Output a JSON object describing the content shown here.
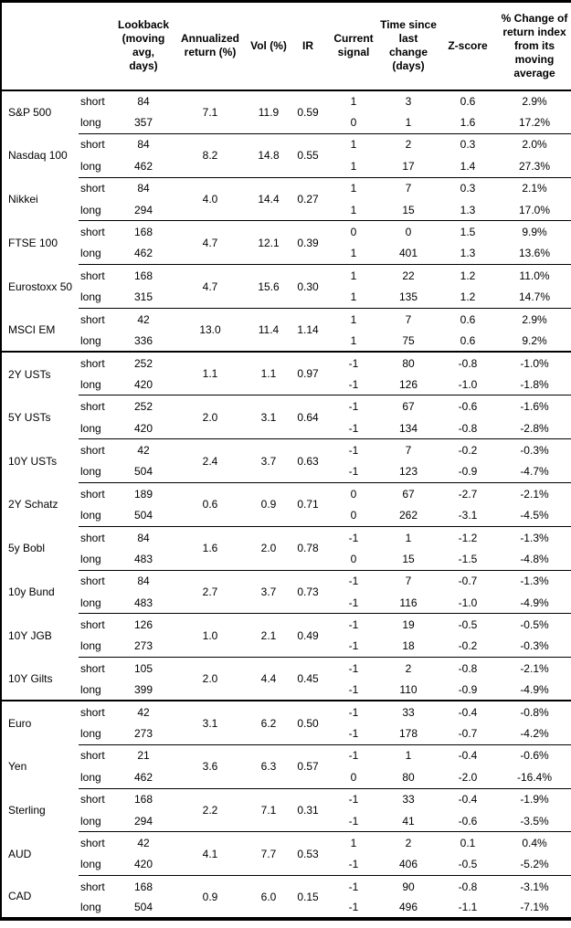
{
  "chart_data": {
    "type": "table",
    "columns": [
      "",
      "",
      "Lookback\n(moving\navg, days)",
      "Annualized\nreturn (%)",
      "Vol (%)",
      "IR",
      "Current\nsignal",
      "Time since\nlast change\n(days)",
      "Z-score",
      "% Change of\nreturn index\nfrom its\nmoving\naverage"
    ],
    "sections": [
      {
        "assets": [
          {
            "name": "S&P 500",
            "annualized_return": "7.1",
            "vol": "11.9",
            "ir": "0.59",
            "rows": [
              {
                "side": "short",
                "lookback": "84",
                "signal": "1",
                "time_since": "3",
                "z_score": "0.6",
                "pct_change": "2.9%"
              },
              {
                "side": "long",
                "lookback": "357",
                "signal": "0",
                "time_since": "1",
                "z_score": "1.6",
                "pct_change": "17.2%"
              }
            ]
          },
          {
            "name": "Nasdaq 100",
            "annualized_return": "8.2",
            "vol": "14.8",
            "ir": "0.55",
            "rows": [
              {
                "side": "short",
                "lookback": "84",
                "signal": "1",
                "time_since": "2",
                "z_score": "0.3",
                "pct_change": "2.0%"
              },
              {
                "side": "long",
                "lookback": "462",
                "signal": "1",
                "time_since": "17",
                "z_score": "1.4",
                "pct_change": "27.3%"
              }
            ]
          },
          {
            "name": "Nikkei",
            "annualized_return": "4.0",
            "vol": "14.4",
            "ir": "0.27",
            "rows": [
              {
                "side": "short",
                "lookback": "84",
                "signal": "1",
                "time_since": "7",
                "z_score": "0.3",
                "pct_change": "2.1%"
              },
              {
                "side": "long",
                "lookback": "294",
                "signal": "1",
                "time_since": "15",
                "z_score": "1.3",
                "pct_change": "17.0%"
              }
            ]
          },
          {
            "name": "FTSE 100",
            "annualized_return": "4.7",
            "vol": "12.1",
            "ir": "0.39",
            "rows": [
              {
                "side": "short",
                "lookback": "168",
                "signal": "0",
                "time_since": "0",
                "z_score": "1.5",
                "pct_change": "9.9%"
              },
              {
                "side": "long",
                "lookback": "462",
                "signal": "1",
                "time_since": "401",
                "z_score": "1.3",
                "pct_change": "13.6%"
              }
            ]
          },
          {
            "name": "Eurostoxx 50",
            "annualized_return": "4.7",
            "vol": "15.6",
            "ir": "0.30",
            "rows": [
              {
                "side": "short",
                "lookback": "168",
                "signal": "1",
                "time_since": "22",
                "z_score": "1.2",
                "pct_change": "11.0%"
              },
              {
                "side": "long",
                "lookback": "315",
                "signal": "1",
                "time_since": "135",
                "z_score": "1.2",
                "pct_change": "14.7%"
              }
            ]
          },
          {
            "name": "MSCI EM",
            "annualized_return": "13.0",
            "vol": "11.4",
            "ir": "1.14",
            "rows": [
              {
                "side": "short",
                "lookback": "42",
                "signal": "1",
                "time_since": "7",
                "z_score": "0.6",
                "pct_change": "2.9%"
              },
              {
                "side": "long",
                "lookback": "336",
                "signal": "1",
                "time_since": "75",
                "z_score": "0.6",
                "pct_change": "9.2%"
              }
            ]
          }
        ]
      },
      {
        "assets": [
          {
            "name": "2Y USTs",
            "annualized_return": "1.1",
            "vol": "1.1",
            "ir": "0.97",
            "rows": [
              {
                "side": "short",
                "lookback": "252",
                "signal": "-1",
                "time_since": "80",
                "z_score": "-0.8",
                "pct_change": "-1.0%"
              },
              {
                "side": "long",
                "lookback": "420",
                "signal": "-1",
                "time_since": "126",
                "z_score": "-1.0",
                "pct_change": "-1.8%"
              }
            ]
          },
          {
            "name": "5Y USTs",
            "annualized_return": "2.0",
            "vol": "3.1",
            "ir": "0.64",
            "rows": [
              {
                "side": "short",
                "lookback": "252",
                "signal": "-1",
                "time_since": "67",
                "z_score": "-0.6",
                "pct_change": "-1.6%"
              },
              {
                "side": "long",
                "lookback": "420",
                "signal": "-1",
                "time_since": "134",
                "z_score": "-0.8",
                "pct_change": "-2.8%"
              }
            ]
          },
          {
            "name": "10Y USTs",
            "annualized_return": "2.4",
            "vol": "3.7",
            "ir": "0.63",
            "rows": [
              {
                "side": "short",
                "lookback": "42",
                "signal": "-1",
                "time_since": "7",
                "z_score": "-0.2",
                "pct_change": "-0.3%"
              },
              {
                "side": "long",
                "lookback": "504",
                "signal": "-1",
                "time_since": "123",
                "z_score": "-0.9",
                "pct_change": "-4.7%"
              }
            ]
          },
          {
            "name": "2Y Schatz",
            "annualized_return": "0.6",
            "vol": "0.9",
            "ir": "0.71",
            "rows": [
              {
                "side": "short",
                "lookback": "189",
                "signal": "0",
                "time_since": "67",
                "z_score": "-2.7",
                "pct_change": "-2.1%"
              },
              {
                "side": "long",
                "lookback": "504",
                "signal": "0",
                "time_since": "262",
                "z_score": "-3.1",
                "pct_change": "-4.5%"
              }
            ]
          },
          {
            "name": "5y Bobl",
            "annualized_return": "1.6",
            "vol": "2.0",
            "ir": "0.78",
            "rows": [
              {
                "side": "short",
                "lookback": "84",
                "signal": "-1",
                "time_since": "1",
                "z_score": "-1.2",
                "pct_change": "-1.3%"
              },
              {
                "side": "long",
                "lookback": "483",
                "signal": "0",
                "time_since": "15",
                "z_score": "-1.5",
                "pct_change": "-4.8%"
              }
            ]
          },
          {
            "name": "10y Bund",
            "annualized_return": "2.7",
            "vol": "3.7",
            "ir": "0.73",
            "rows": [
              {
                "side": "short",
                "lookback": "84",
                "signal": "-1",
                "time_since": "7",
                "z_score": "-0.7",
                "pct_change": "-1.3%"
              },
              {
                "side": "long",
                "lookback": "483",
                "signal": "-1",
                "time_since": "116",
                "z_score": "-1.0",
                "pct_change": "-4.9%"
              }
            ]
          },
          {
            "name": "10Y JGB",
            "annualized_return": "1.0",
            "vol": "2.1",
            "ir": "0.49",
            "rows": [
              {
                "side": "short",
                "lookback": "126",
                "signal": "-1",
                "time_since": "19",
                "z_score": "-0.5",
                "pct_change": "-0.5%"
              },
              {
                "side": "long",
                "lookback": "273",
                "signal": "-1",
                "time_since": "18",
                "z_score": "-0.2",
                "pct_change": "-0.3%"
              }
            ]
          },
          {
            "name": "10Y Gilts",
            "annualized_return": "2.0",
            "vol": "4.4",
            "ir": "0.45",
            "rows": [
              {
                "side": "short",
                "lookback": "105",
                "signal": "-1",
                "time_since": "2",
                "z_score": "-0.8",
                "pct_change": "-2.1%"
              },
              {
                "side": "long",
                "lookback": "399",
                "signal": "-1",
                "time_since": "110",
                "z_score": "-0.9",
                "pct_change": "-4.9%"
              }
            ]
          }
        ]
      },
      {
        "assets": [
          {
            "name": "Euro",
            "annualized_return": "3.1",
            "vol": "6.2",
            "ir": "0.50",
            "rows": [
              {
                "side": "short",
                "lookback": "42",
                "signal": "-1",
                "time_since": "33",
                "z_score": "-0.4",
                "pct_change": "-0.8%"
              },
              {
                "side": "long",
                "lookback": "273",
                "signal": "-1",
                "time_since": "178",
                "z_score": "-0.7",
                "pct_change": "-4.2%"
              }
            ]
          },
          {
            "name": "Yen",
            "annualized_return": "3.6",
            "vol": "6.3",
            "ir": "0.57",
            "rows": [
              {
                "side": "short",
                "lookback": "21",
                "signal": "-1",
                "time_since": "1",
                "z_score": "-0.4",
                "pct_change": "-0.6%"
              },
              {
                "side": "long",
                "lookback": "462",
                "signal": "0",
                "time_since": "80",
                "z_score": "-2.0",
                "pct_change": "-16.4%"
              }
            ]
          },
          {
            "name": "Sterling",
            "annualized_return": "2.2",
            "vol": "7.1",
            "ir": "0.31",
            "rows": [
              {
                "side": "short",
                "lookback": "168",
                "signal": "-1",
                "time_since": "33",
                "z_score": "-0.4",
                "pct_change": "-1.9%"
              },
              {
                "side": "long",
                "lookback": "294",
                "signal": "-1",
                "time_since": "41",
                "z_score": "-0.6",
                "pct_change": "-3.5%"
              }
            ]
          },
          {
            "name": "AUD",
            "annualized_return": "4.1",
            "vol": "7.7",
            "ir": "0.53",
            "rows": [
              {
                "side": "short",
                "lookback": "42",
                "signal": "1",
                "time_since": "2",
                "z_score": "0.1",
                "pct_change": "0.4%"
              },
              {
                "side": "long",
                "lookback": "420",
                "signal": "-1",
                "time_since": "406",
                "z_score": "-0.5",
                "pct_change": "-5.2%"
              }
            ]
          },
          {
            "name": "CAD",
            "annualized_return": "0.9",
            "vol": "6.0",
            "ir": "0.15",
            "rows": [
              {
                "side": "short",
                "lookback": "168",
                "signal": "-1",
                "time_since": "90",
                "z_score": "-0.8",
                "pct_change": "-3.1%"
              },
              {
                "side": "long",
                "lookback": "504",
                "signal": "-1",
                "time_since": "496",
                "z_score": "-1.1",
                "pct_change": "-7.1%"
              }
            ]
          }
        ]
      }
    ]
  }
}
